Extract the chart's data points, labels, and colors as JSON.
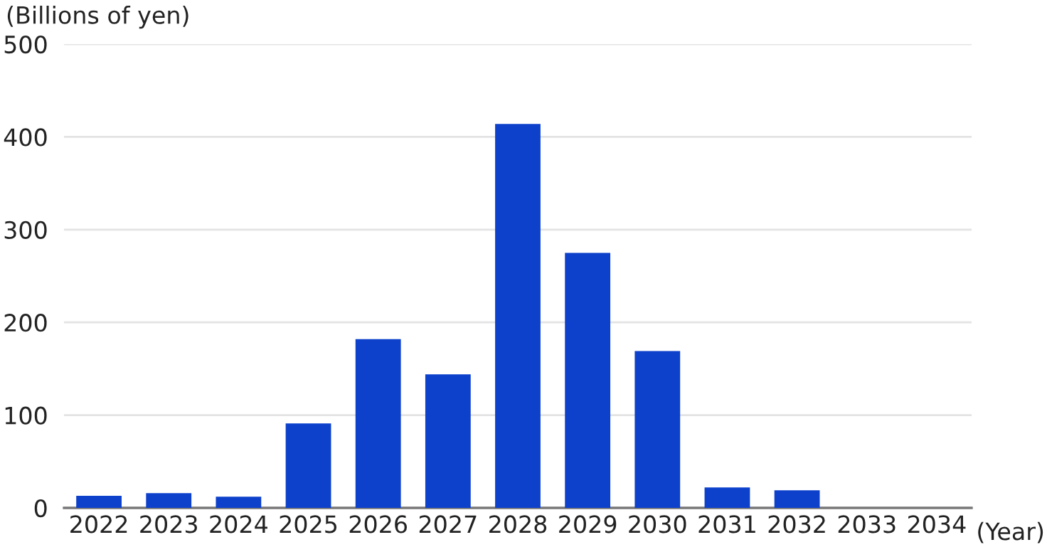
{
  "chart_data": {
    "type": "bar",
    "ylabel": "(Billions of yen)",
    "xlabel": "(Year)",
    "categories": [
      "2022",
      "2023",
      "2024",
      "2025",
      "2026",
      "2027",
      "2028",
      "2029",
      "2030",
      "2031",
      "2032",
      "2033",
      "2034"
    ],
    "values": [
      13,
      16,
      12,
      91,
      182,
      144,
      414,
      275,
      169,
      22,
      19,
      0,
      0
    ],
    "color": "#0d41cc",
    "ylim": [
      0,
      500
    ],
    "yticks": [
      0,
      100,
      200,
      300,
      400,
      500
    ],
    "grid": "y"
  }
}
